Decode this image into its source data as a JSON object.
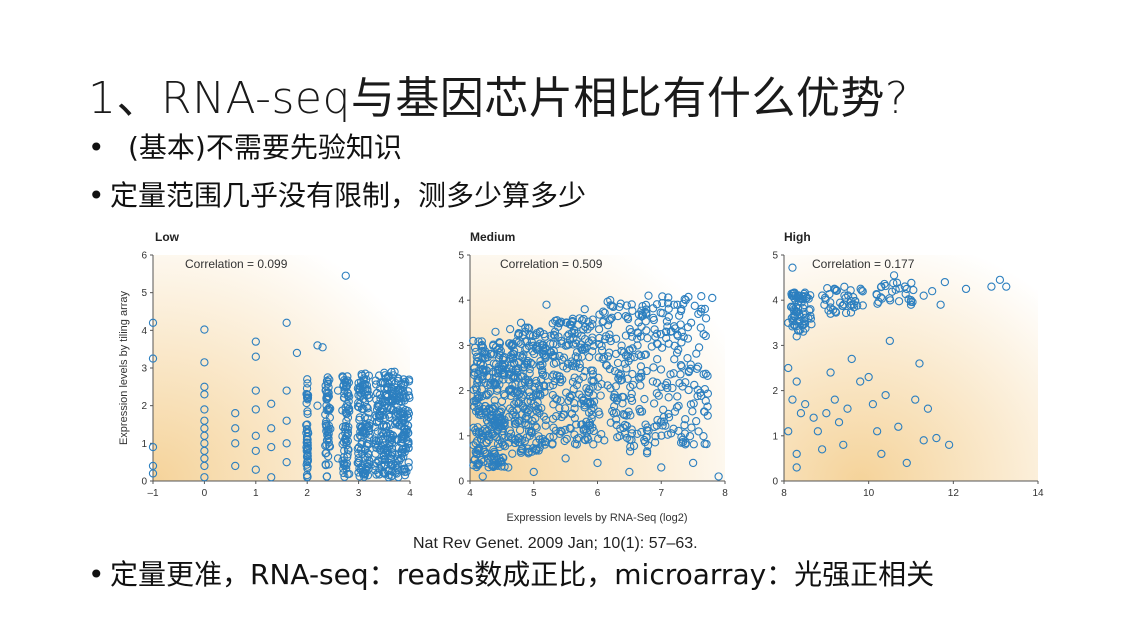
{
  "slide": {
    "title": "1、RNA-seq与基因芯片相比有什么优势?",
    "bullets": [
      {
        "marker": "•",
        "text": "(基本)不需要先验知识"
      },
      {
        "marker": "•",
        "text": "定量范围几乎没有限制，测多少算多少"
      },
      {
        "marker": "•",
        "text": "定量更准，RNA-seq：reads数成正比，microarray：光强正相关"
      }
    ],
    "citation": "Nat Rev Genet. 2009 Jan; 10(1): 57–63."
  },
  "colors": {
    "point": "#2c7fbf",
    "background_gradient": "#f6d9a7"
  },
  "chart_data": [
    {
      "type": "scatter",
      "title": "Low",
      "annotation": "Correlation = 0.099",
      "ylabel": "Expression levels by tiling array",
      "xlim": [
        -1,
        4
      ],
      "ylim": [
        0,
        6
      ],
      "xticks": [
        "–1",
        "0",
        "1",
        "2",
        "3",
        "4"
      ],
      "yticks": [
        "0",
        "1",
        "2",
        "3",
        "4",
        "5",
        "6"
      ],
      "points": [
        [
          -1,
          4.2
        ],
        [
          -1,
          3.25
        ],
        [
          -1,
          0.9
        ],
        [
          -1,
          0.4
        ],
        [
          -1,
          0.2
        ],
        [
          0,
          4.02
        ],
        [
          0,
          3.15
        ],
        [
          0,
          2.5
        ],
        [
          0,
          2.3
        ],
        [
          0,
          1.9
        ],
        [
          0,
          1.6
        ],
        [
          0,
          1.4
        ],
        [
          0,
          1.2
        ],
        [
          0,
          1.0
        ],
        [
          0,
          0.8
        ],
        [
          0,
          0.6
        ],
        [
          0,
          0.4
        ],
        [
          0,
          0.1
        ],
        [
          0.6,
          1.8
        ],
        [
          0.6,
          1.4
        ],
        [
          0.6,
          1.0
        ],
        [
          0.6,
          0.4
        ],
        [
          1,
          3.7
        ],
        [
          1,
          3.3
        ],
        [
          1,
          2.4
        ],
        [
          1,
          1.9
        ],
        [
          1,
          1.2
        ],
        [
          1,
          0.8
        ],
        [
          1,
          0.3
        ],
        [
          1.3,
          2.05
        ],
        [
          1.3,
          1.4
        ],
        [
          1.3,
          0.9
        ],
        [
          1.3,
          0.1
        ],
        [
          1.6,
          4.2
        ],
        [
          1.6,
          2.4
        ],
        [
          1.6,
          1.6
        ],
        [
          1.6,
          1.0
        ],
        [
          1.6,
          0.5
        ],
        [
          1.8,
          3.4
        ],
        [
          2,
          2.7
        ],
        [
          2,
          2.2
        ],
        [
          2,
          1.5
        ],
        [
          2,
          1.0
        ],
        [
          2,
          0.5
        ],
        [
          2,
          0.1
        ],
        [
          2.2,
          3.6
        ],
        [
          2.2,
          2.0
        ],
        [
          2.3,
          3.55
        ],
        [
          2.4,
          2.75
        ],
        [
          2.4,
          1.2
        ],
        [
          2.6,
          2.4
        ],
        [
          2.6,
          0.6
        ],
        [
          2.75,
          5.45
        ],
        [
          2.8,
          1.9
        ],
        [
          3.0,
          2.6
        ],
        [
          3.2,
          2.2
        ],
        [
          3.3,
          1.1
        ],
        [
          3.4,
          2.8
        ],
        [
          3.5,
          0.4
        ],
        [
          3.6,
          1.7
        ],
        [
          3.7,
          2.9
        ],
        [
          3.9,
          1.4
        ]
      ],
      "dense_clusters": [
        {
          "x": 2.0,
          "xspread": 0.02,
          "y": [
            0.1,
            2.6
          ],
          "count": 40
        },
        {
          "x": 2.4,
          "xspread": 0.05,
          "y": [
            0.1,
            2.7
          ],
          "count": 55
        },
        {
          "x": 2.75,
          "xspread": 0.07,
          "y": [
            0.1,
            2.8
          ],
          "count": 70
        },
        {
          "x": 3.1,
          "xspread": 0.12,
          "y": [
            0.1,
            2.9
          ],
          "count": 110
        },
        {
          "x": 3.5,
          "xspread": 0.18,
          "y": [
            0.1,
            2.9
          ],
          "count": 150
        },
        {
          "x": 3.85,
          "xspread": 0.14,
          "y": [
            0.1,
            2.8
          ],
          "count": 120
        }
      ]
    },
    {
      "type": "scatter",
      "title": "Medium",
      "annotation": "Correlation = 0.509",
      "xlabel": "Expression levels by RNA-Seq (log2)",
      "xlim": [
        4,
        8
      ],
      "ylim": [
        0,
        5
      ],
      "xticks": [
        "4",
        "5",
        "6",
        "7",
        "8"
      ],
      "yticks": [
        "0",
        "1",
        "2",
        "3",
        "4",
        "5"
      ],
      "points": [
        [
          4.05,
          3.1
        ],
        [
          4.1,
          0.6
        ],
        [
          4.2,
          0.1
        ],
        [
          4.3,
          2.5
        ],
        [
          4.4,
          3.3
        ],
        [
          4.6,
          0.3
        ],
        [
          4.8,
          3.5
        ],
        [
          5.0,
          0.2
        ],
        [
          5.2,
          3.9
        ],
        [
          5.5,
          0.5
        ],
        [
          5.8,
          3.8
        ],
        [
          6.0,
          0.4
        ],
        [
          6.2,
          4.0
        ],
        [
          6.5,
          0.2
        ],
        [
          6.8,
          4.1
        ],
        [
          7.0,
          0.3
        ],
        [
          7.2,
          3.9
        ],
        [
          7.5,
          0.4
        ],
        [
          7.8,
          4.05
        ],
        [
          7.9,
          0.1
        ]
      ],
      "dense_clusters": [
        {
          "x": 4.3,
          "xspread": 0.25,
          "y": [
            0.3,
            3.1
          ],
          "count": 260
        },
        {
          "x": 4.9,
          "xspread": 0.3,
          "y": [
            0.6,
            3.4
          ],
          "count": 240
        },
        {
          "x": 5.6,
          "xspread": 0.35,
          "y": [
            0.8,
            3.6
          ],
          "count": 200
        },
        {
          "x": 6.4,
          "xspread": 0.4,
          "y": [
            0.6,
            4.0
          ],
          "count": 170
        },
        {
          "x": 7.3,
          "xspread": 0.45,
          "y": [
            0.8,
            4.1
          ],
          "count": 150
        }
      ]
    },
    {
      "type": "scatter",
      "title": "High",
      "annotation": "Correlation = 0.177",
      "xlim": [
        8,
        14
      ],
      "ylim": [
        0,
        5
      ],
      "xticks": [
        "8",
        "10",
        "12",
        "14"
      ],
      "yticks": [
        "0",
        "1",
        "2",
        "3",
        "4",
        "5"
      ],
      "points": [
        [
          8.2,
          4.72
        ],
        [
          8.1,
          3.5
        ],
        [
          8.3,
          3.2
        ],
        [
          8.1,
          2.5
        ],
        [
          8.3,
          2.2
        ],
        [
          8.2,
          1.8
        ],
        [
          8.4,
          1.5
        ],
        [
          8.1,
          1.1
        ],
        [
          8.3,
          0.6
        ],
        [
          8.3,
          0.3
        ],
        [
          8.5,
          1.7
        ],
        [
          8.7,
          1.4
        ],
        [
          8.8,
          1.1
        ],
        [
          8.9,
          0.7
        ],
        [
          9.0,
          1.5
        ],
        [
          9.1,
          2.4
        ],
        [
          9.2,
          1.8
        ],
        [
          9.3,
          1.3
        ],
        [
          9.4,
          0.8
        ],
        [
          9.5,
          1.6
        ],
        [
          9.6,
          2.7
        ],
        [
          9.8,
          2.2
        ],
        [
          10.0,
          2.3
        ],
        [
          10.1,
          1.7
        ],
        [
          10.2,
          1.1
        ],
        [
          10.3,
          0.6
        ],
        [
          10.4,
          1.9
        ],
        [
          10.5,
          3.1
        ],
        [
          10.7,
          1.2
        ],
        [
          10.9,
          0.4
        ],
        [
          11.1,
          1.8
        ],
        [
          11.2,
          2.6
        ],
        [
          11.3,
          0.9
        ],
        [
          11.4,
          1.6
        ],
        [
          11.6,
          0.95
        ],
        [
          11.7,
          3.9
        ],
        [
          11.9,
          0.8
        ],
        [
          9.1,
          3.7
        ],
        [
          9.6,
          3.9
        ],
        [
          10.3,
          4.3
        ],
        [
          10.6,
          4.55
        ],
        [
          11.0,
          4.0
        ],
        [
          11.5,
          4.2
        ],
        [
          11.8,
          4.4
        ],
        [
          12.3,
          4.25
        ],
        [
          12.9,
          4.3
        ],
        [
          13.1,
          4.45
        ],
        [
          13.25,
          4.3
        ],
        [
          11.0,
          3.9
        ],
        [
          11.3,
          4.1
        ]
      ],
      "dense_clusters": [
        {
          "x": 8.4,
          "xspread": 0.25,
          "y": [
            3.3,
            4.2
          ],
          "count": 70
        },
        {
          "x": 9.4,
          "xspread": 0.5,
          "y": [
            3.7,
            4.3
          ],
          "count": 40
        },
        {
          "x": 10.6,
          "xspread": 0.5,
          "y": [
            3.9,
            4.4
          ],
          "count": 25
        }
      ]
    }
  ]
}
